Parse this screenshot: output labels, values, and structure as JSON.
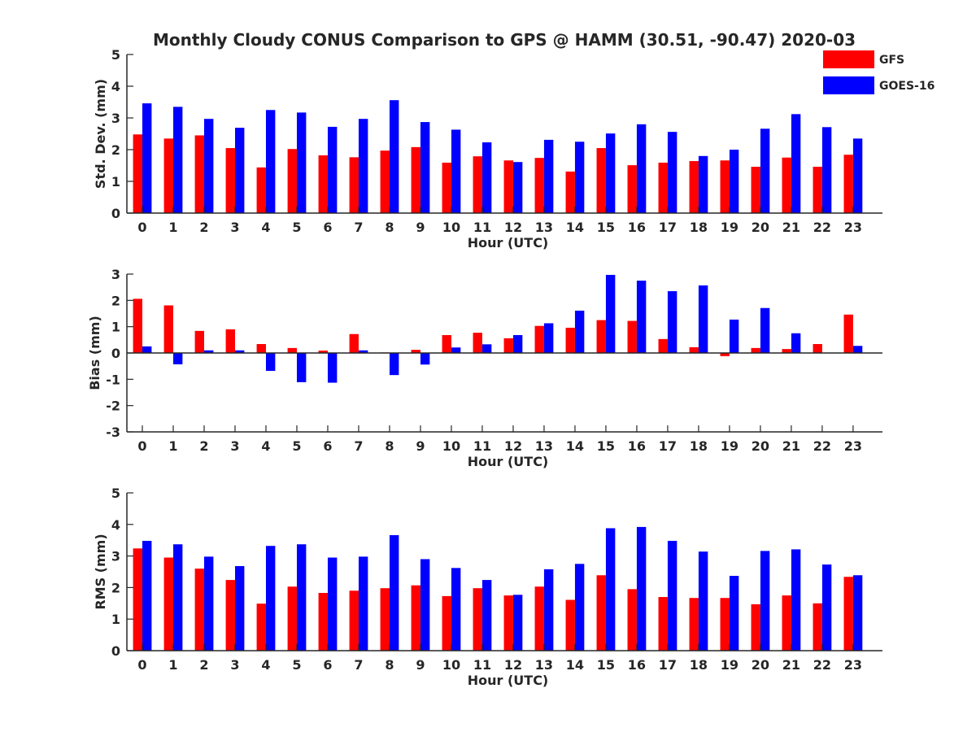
{
  "title": "Monthly Cloudy CONUS Comparison to GPS @ HAMM (30.51, -90.47) 2020-03",
  "legend": [
    {
      "label": "GFS",
      "color": "#ff0000"
    },
    {
      "label": "GOES-16",
      "color": "#0000ff"
    }
  ],
  "chart_data": [
    {
      "type": "bar",
      "xlabel": "Hour (UTC)",
      "ylabel": "Std. Dev. (mm)",
      "ylim": [
        0,
        5
      ],
      "yticks": [
        "0",
        "1",
        "2",
        "3",
        "4",
        "5"
      ],
      "categories": [
        "0",
        "1",
        "2",
        "3",
        "4",
        "5",
        "6",
        "7",
        "8",
        "9",
        "10",
        "11",
        "12",
        "13",
        "14",
        "15",
        "16",
        "17",
        "18",
        "19",
        "20",
        "21",
        "22",
        "23"
      ],
      "series": [
        {
          "name": "GFS",
          "color": "#ff0000",
          "values": [
            2.48,
            2.35,
            2.45,
            2.05,
            1.44,
            2.02,
            1.82,
            1.76,
            1.97,
            2.08,
            1.59,
            1.79,
            1.66,
            1.74,
            1.31,
            2.05,
            1.51,
            1.59,
            1.64,
            1.66,
            1.46,
            1.75,
            1.46,
            1.84
          ]
        },
        {
          "name": "GOES-16",
          "color": "#0000ff",
          "values": [
            3.46,
            3.35,
            2.97,
            2.69,
            3.25,
            3.17,
            2.72,
            2.97,
            3.56,
            2.87,
            2.63,
            2.23,
            1.61,
            2.31,
            2.25,
            2.51,
            2.8,
            2.56,
            1.8,
            2.0,
            2.66,
            3.12,
            2.71,
            2.35
          ]
        }
      ]
    },
    {
      "type": "bar",
      "xlabel": "Hour (UTC)",
      "ylabel": "Bias (mm)",
      "ylim": [
        -3,
        3
      ],
      "yticks": [
        "-3",
        "-2",
        "-1",
        "0",
        "1",
        "2",
        "3"
      ],
      "categories": [
        "0",
        "1",
        "2",
        "3",
        "4",
        "5",
        "6",
        "7",
        "8",
        "9",
        "10",
        "11",
        "12",
        "13",
        "14",
        "15",
        "16",
        "17",
        "18",
        "19",
        "20",
        "21",
        "22",
        "23"
      ],
      "series": [
        {
          "name": "GFS",
          "color": "#ff0000",
          "values": [
            2.06,
            1.81,
            0.84,
            0.9,
            0.34,
            0.19,
            0.09,
            0.72,
            0.02,
            0.12,
            0.68,
            0.77,
            0.56,
            1.03,
            0.96,
            1.25,
            1.22,
            0.53,
            0.22,
            -0.12,
            0.19,
            0.15,
            0.34,
            1.46
          ]
        },
        {
          "name": "GOES-16",
          "color": "#0000ff",
          "values": [
            0.25,
            -0.43,
            0.1,
            0.1,
            -0.68,
            -1.11,
            -1.13,
            0.1,
            -0.84,
            -0.44,
            0.21,
            0.33,
            0.68,
            1.13,
            1.61,
            2.97,
            2.75,
            2.35,
            2.57,
            1.27,
            1.71,
            0.75,
            0.0,
            0.27
          ]
        }
      ]
    },
    {
      "type": "bar",
      "xlabel": "Hour (UTC)",
      "ylabel": "RMS (mm)",
      "ylim": [
        0,
        5
      ],
      "yticks": [
        "0",
        "1",
        "2",
        "3",
        "4",
        "5"
      ],
      "categories": [
        "0",
        "1",
        "2",
        "3",
        "4",
        "5",
        "6",
        "7",
        "8",
        "9",
        "10",
        "11",
        "12",
        "13",
        "14",
        "15",
        "16",
        "17",
        "18",
        "19",
        "20",
        "21",
        "22",
        "23"
      ],
      "series": [
        {
          "name": "GFS",
          "color": "#ff0000",
          "values": [
            3.24,
            2.95,
            2.6,
            2.24,
            1.49,
            2.03,
            1.83,
            1.9,
            1.98,
            2.07,
            1.73,
            1.98,
            1.75,
            2.03,
            1.61,
            2.39,
            1.95,
            1.7,
            1.67,
            1.67,
            1.47,
            1.75,
            1.5,
            2.34
          ]
        },
        {
          "name": "GOES-16",
          "color": "#0000ff",
          "values": [
            3.48,
            3.37,
            2.98,
            2.68,
            3.32,
            3.37,
            2.95,
            2.98,
            3.66,
            2.9,
            2.62,
            2.24,
            1.77,
            2.58,
            2.75,
            3.88,
            3.92,
            3.48,
            3.14,
            2.37,
            3.16,
            3.21,
            2.73,
            2.39
          ]
        }
      ]
    }
  ]
}
